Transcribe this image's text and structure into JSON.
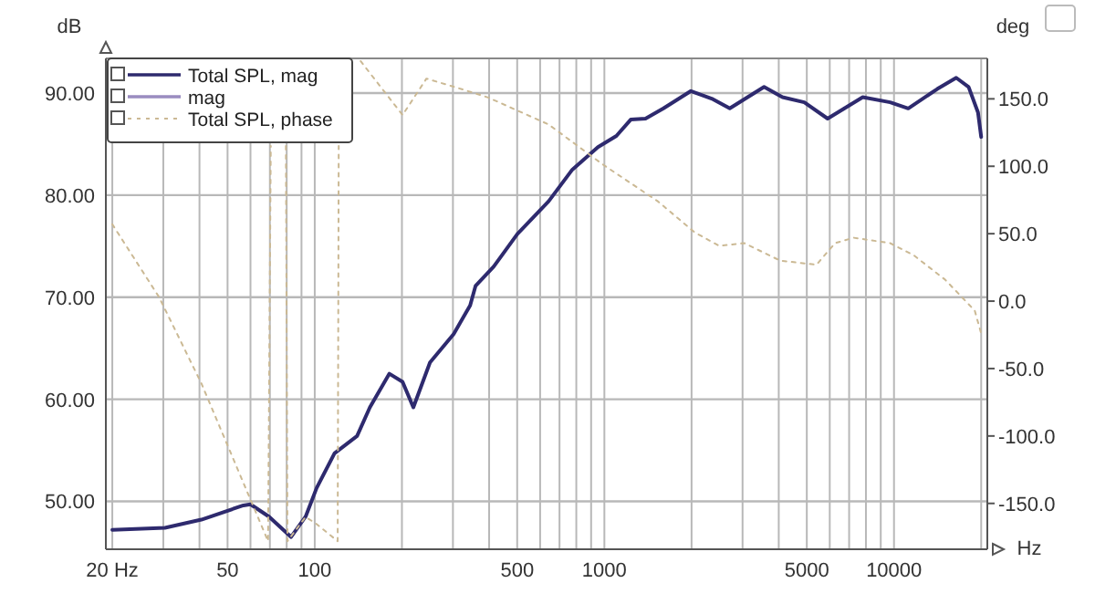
{
  "chart_data": {
    "type": "line",
    "xlabel": "Hz",
    "ylabel": "dB",
    "y2label": "deg",
    "log": "x",
    "grid": true,
    "legend": "top left",
    "line_style": "solid",
    "marker": "none",
    "xlim": [
      19,
      21000
    ],
    "ylim": [
      45.3,
      93.4
    ],
    "y2lim": [
      -184,
      180
    ],
    "xticks": [
      {
        "value": 20,
        "label": "20 Hz"
      },
      {
        "value": 30,
        "label": null
      },
      {
        "value": 40,
        "label": null
      },
      50,
      {
        "value": 60,
        "label": null
      },
      {
        "value": 70,
        "label": null
      },
      {
        "value": 80,
        "label": null
      },
      {
        "value": 90,
        "label": null
      },
      100,
      {
        "value": 200,
        "label": null
      },
      {
        "value": 300,
        "label": null
      },
      {
        "value": 400,
        "label": null
      },
      500,
      {
        "value": 600,
        "label": null
      },
      {
        "value": 700,
        "label": null
      },
      {
        "value": 800,
        "label": null
      },
      {
        "value": 900,
        "label": null
      },
      1000,
      {
        "value": 2000,
        "label": null
      },
      {
        "value": 3000,
        "label": null
      },
      {
        "value": 4000,
        "label": null
      },
      5000,
      {
        "value": 6000,
        "label": null
      },
      {
        "value": 7000,
        "label": null
      },
      {
        "value": 8000,
        "label": null
      },
      {
        "value": 9000,
        "label": null
      },
      10000,
      {
        "value": 20000,
        "label": null
      }
    ],
    "yticks": [
      {
        "value": 50,
        "label": "50.00"
      },
      {
        "value": 60,
        "label": "60.00"
      },
      {
        "value": 70,
        "label": "70.00"
      },
      {
        "value": 80,
        "label": "80.00"
      },
      {
        "value": 90,
        "label": "90.00"
      }
    ],
    "y2ticks": [
      {
        "value": -150,
        "label": "-150.0"
      },
      {
        "value": -100,
        "label": "-100.0"
      },
      {
        "value": -50,
        "label": "-50.0"
      },
      {
        "value": 0,
        "label": "0.0"
      },
      {
        "value": 50,
        "label": "50.0"
      },
      {
        "value": 100,
        "label": "100.0"
      },
      {
        "value": 150,
        "label": "150.0"
      }
    ],
    "series": [
      {
        "name": "Total SPL, mag",
        "color": "#2e2a6e",
        "x": [
          20,
          30.4,
          40.6,
          56.7,
          60,
          69.5,
          82.8,
          93,
          101.5,
          117,
          140,
          155,
          181,
          201,
          219,
          250,
          302,
          344,
          359,
          415,
          501,
          642,
          775,
          950,
          1100,
          1233,
          1387,
          1600,
          1990,
          2370,
          2710,
          3560,
          4120,
          4900,
          5900,
          7800,
          9700,
          11200,
          14100,
          16400,
          18100,
          19500,
          20000
        ],
        "values": [
          47.2,
          47.4,
          48.2,
          49.6,
          49.7,
          48.5,
          46.5,
          48.5,
          51.3,
          54.7,
          56.4,
          59.2,
          62.5,
          61.7,
          59.2,
          63.6,
          66.4,
          69.2,
          71.1,
          73.0,
          76.2,
          79.4,
          82.5,
          84.7,
          85.8,
          87.4,
          87.5,
          88.5,
          90.2,
          89.4,
          88.5,
          90.6,
          89.6,
          89.1,
          87.5,
          89.6,
          89.1,
          88.5,
          90.4,
          91.5,
          90.6,
          88.1,
          85.7
        ]
      },
      {
        "name": "mag",
        "color": "#9a8cc0"
      },
      {
        "name": "Total SPL, phase",
        "color": "#cbb994",
        "axis": "y2",
        "line_style": "dotted",
        "x": [
          20,
          29,
          40.6,
          69,
          70.5,
          75,
          79.5,
          80.5,
          93,
          101,
          120,
          121,
          130,
          144,
          201,
          243,
          302,
          397,
          642,
          993,
          1530,
          2050,
          2490,
          3040,
          4050,
          5400,
          6260,
          7260,
          9700,
          11700,
          15000,
          19000,
          20000
        ],
        "values": [
          57,
          3,
          -61,
          -178,
          115,
          null,
          115,
          -178,
          -160,
          -165,
          -178,
          115,
          null,
          178,
          138,
          165,
          159,
          151,
          131,
          101,
          74,
          51,
          41,
          43,
          30,
          27,
          43,
          47,
          43,
          34,
          16,
          -7,
          -24
        ]
      }
    ]
  }
}
